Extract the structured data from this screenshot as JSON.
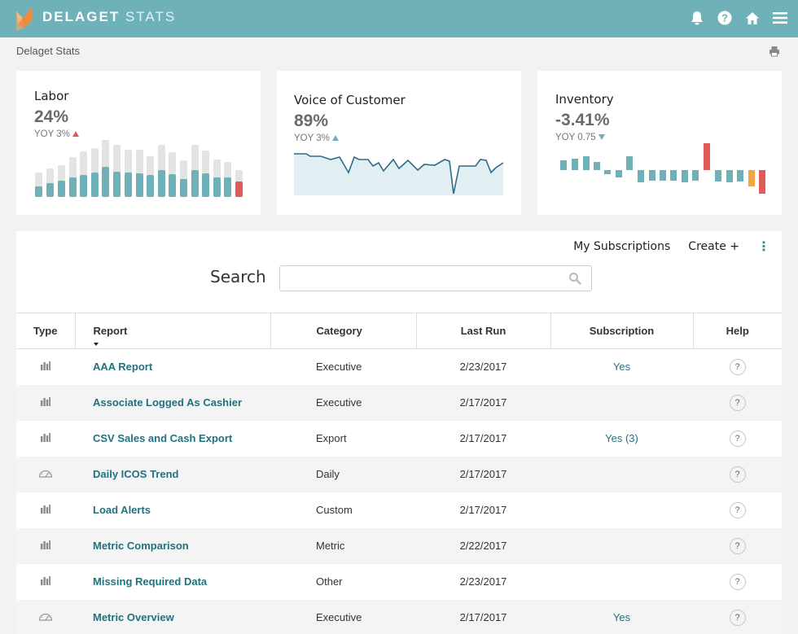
{
  "app": {
    "brand_bold": "DELAGET",
    "brand_light": "STATS"
  },
  "top_icons": [
    "bell-icon",
    "help-icon",
    "home-icon",
    "menu-icon"
  ],
  "breadcrumb": "Delaget Stats",
  "colors": {
    "header": "#6fb1b8",
    "teal_bar": "#6fb1b8",
    "grey_bar": "#e3e3e3",
    "red": "#e05a5a",
    "orange": "#f2a541",
    "link": "#21717e"
  },
  "cards": {
    "labor": {
      "title": "Labor",
      "value": "24%",
      "yoy": "YOY 3%",
      "trend": "up-red"
    },
    "voice": {
      "title": "Voice of Customer",
      "value": "89%",
      "yoy": "YOY 3%",
      "trend": "up-teal"
    },
    "inventory": {
      "title": "Inventory",
      "value": "-3.41%",
      "yoy": "YOY 0.75",
      "trend": "down-teal"
    }
  },
  "panel": {
    "my_subscriptions": "My Subscriptions",
    "create": "Create +",
    "search_label": "Search",
    "search_placeholder": ""
  },
  "table": {
    "headers": {
      "type": "Type",
      "report": "Report",
      "category": "Category",
      "last_run": "Last Run",
      "subscription": "Subscription",
      "help": "Help"
    },
    "rows": [
      {
        "type": "bar-chart-icon",
        "report": "AAA Report",
        "category": "Executive",
        "last_run": "2/23/2017",
        "subscription": "Yes",
        "help": "?"
      },
      {
        "type": "bar-chart-icon",
        "report": "Associate Logged As Cashier",
        "category": "Executive",
        "last_run": "2/17/2017",
        "subscription": "",
        "help": "?"
      },
      {
        "type": "bar-chart-icon",
        "report": "CSV Sales and Cash Export",
        "category": "Export",
        "last_run": "2/17/2017",
        "subscription": "Yes (3)",
        "help": "?"
      },
      {
        "type": "gauge-icon",
        "report": "Daily ICOS Trend",
        "category": "Daily",
        "last_run": "2/17/2017",
        "subscription": "",
        "help": "?"
      },
      {
        "type": "bar-chart-icon",
        "report": "Load Alerts",
        "category": "Custom",
        "last_run": "2/17/2017",
        "subscription": "",
        "help": "?"
      },
      {
        "type": "bar-chart-icon",
        "report": "Metric Comparison",
        "category": "Metric",
        "last_run": "2/22/2017",
        "subscription": "",
        "help": "?"
      },
      {
        "type": "bar-chart-icon",
        "report": "Missing Required Data",
        "category": "Other",
        "last_run": "2/23/2017",
        "subscription": "",
        "help": "?"
      },
      {
        "type": "gauge-icon",
        "report": "Metric Overview",
        "category": "Executive",
        "last_run": "2/17/2017",
        "subscription": "Yes",
        "help": "?"
      }
    ]
  }
}
